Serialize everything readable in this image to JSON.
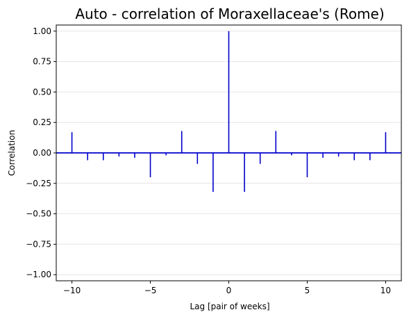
{
  "chart_data": {
    "type": "bar",
    "title": "Auto - correlation of Moraxellaceae's (Rome)",
    "xlabel": "Lag [pair of weeks]",
    "ylabel": "Correlation",
    "xlim": [
      -11,
      11
    ],
    "ylim": [
      -1.05,
      1.05
    ],
    "xticks": [
      -10,
      -5,
      0,
      5,
      10
    ],
    "xtick_labels": [
      "−10",
      "−5",
      "0",
      "5",
      "10"
    ],
    "yticks": [
      -1.0,
      -0.75,
      -0.5,
      -0.25,
      0.0,
      0.25,
      0.5,
      0.75,
      1.0
    ],
    "ytick_labels": [
      "−1.00",
      "−0.75",
      "−0.50",
      "−0.25",
      "0.00",
      "0.25",
      "0.50",
      "0.75",
      "1.00"
    ],
    "grid": "horizontal",
    "color": "#0000cc",
    "series": [
      {
        "x": [
          -10,
          -9,
          -8,
          -7,
          -6,
          -5,
          -4,
          -3,
          -2,
          -1,
          0,
          1,
          2,
          3,
          4,
          5,
          6,
          7,
          8,
          9,
          10
        ],
        "values": [
          0.17,
          -0.06,
          -0.06,
          -0.03,
          -0.04,
          -0.2,
          -0.02,
          0.18,
          -0.09,
          -0.32,
          1.0,
          -0.32,
          -0.09,
          0.18,
          -0.02,
          -0.2,
          -0.04,
          -0.03,
          -0.06,
          -0.06,
          0.17
        ]
      }
    ]
  }
}
